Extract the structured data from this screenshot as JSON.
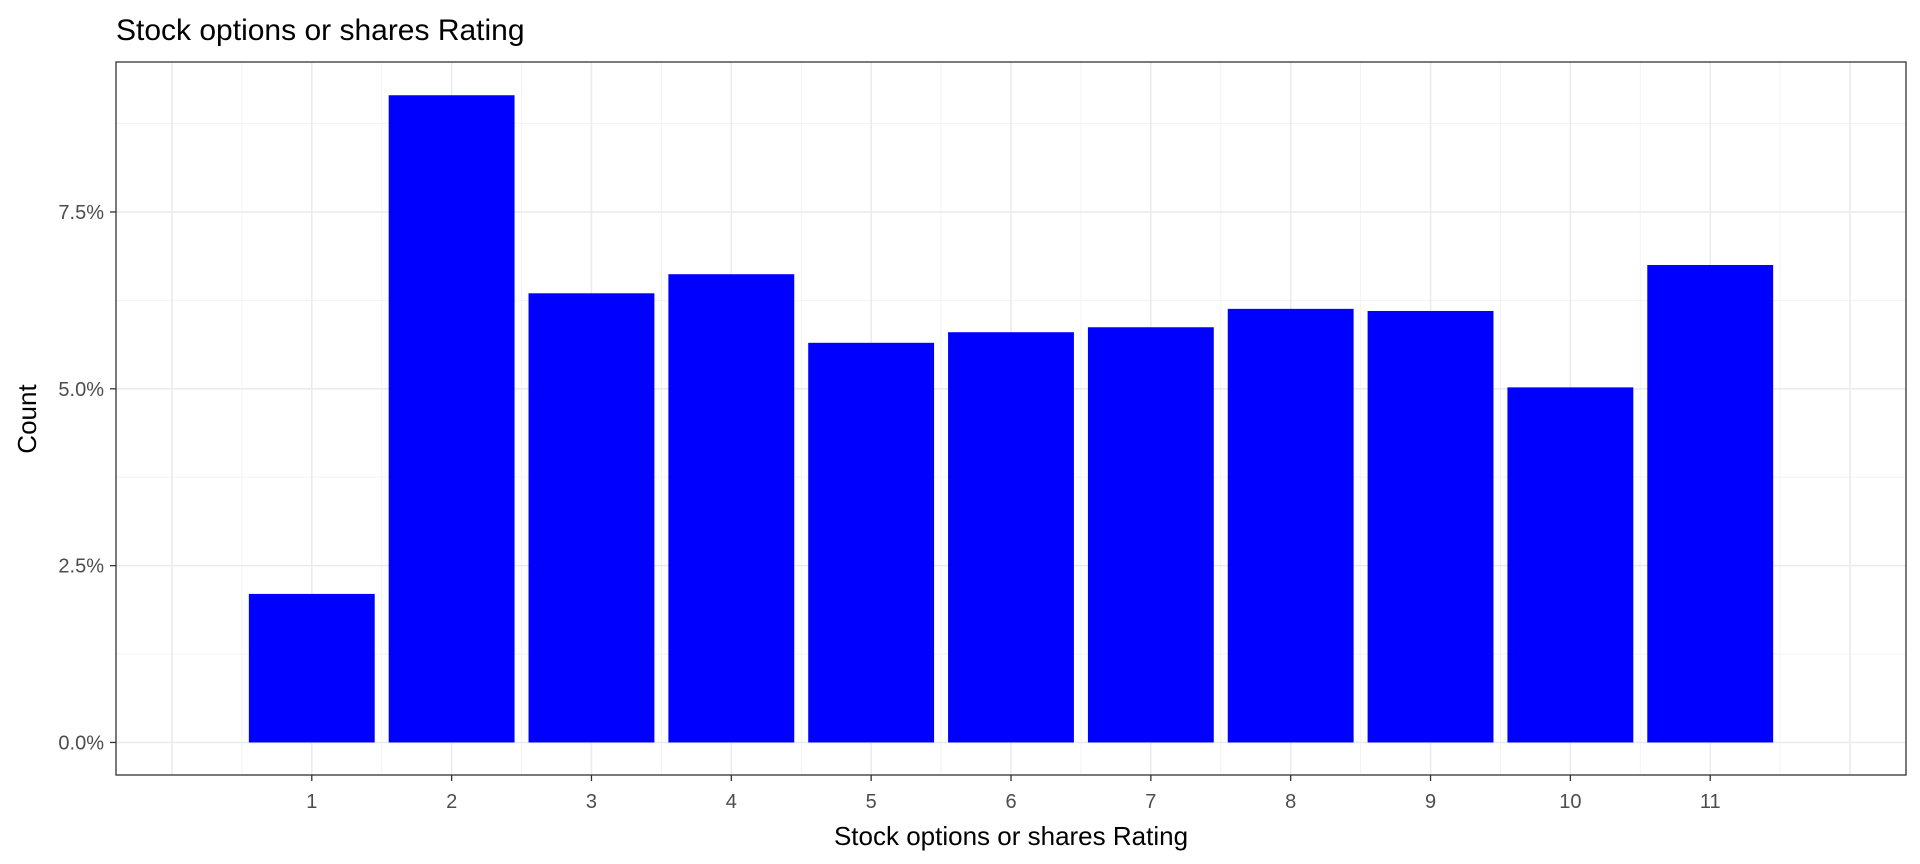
{
  "chart_data": {
    "type": "bar",
    "title": "Stock options or shares Rating",
    "xlabel": "Stock options or shares Rating",
    "ylabel": "Count",
    "categories": [
      "1",
      "2",
      "3",
      "4",
      "5",
      "6",
      "7",
      "8",
      "9",
      "10",
      "11"
    ],
    "values": [
      0.021,
      0.0915,
      0.0635,
      0.0662,
      0.0565,
      0.058,
      0.0587,
      0.0613,
      0.061,
      0.0502,
      0.0675
    ],
    "y_ticks": [
      0,
      0.025,
      0.05,
      0.075
    ],
    "y_tick_labels": [
      "0.0%",
      "2.5%",
      "5.0%",
      "7.5%"
    ],
    "ylim": [
      -0.0046,
      0.0962
    ],
    "bar_color": "#0000ff",
    "grid": true
  }
}
